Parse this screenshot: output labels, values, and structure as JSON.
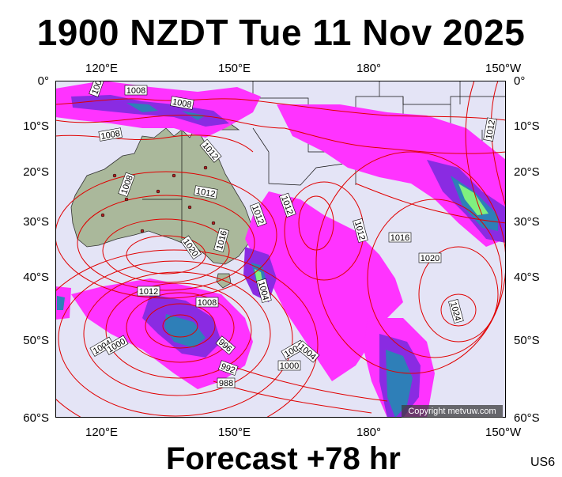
{
  "title": "1900 NZDT Tue 11 Nov 2025",
  "footer": "Forecast +78 hr",
  "model_code": "US6",
  "copyright": "Copyright metvuw.com",
  "axes": {
    "top_lon_labels": [
      "120°E",
      "150°E",
      "180°",
      "150°W"
    ],
    "bottom_lon_labels": [
      "120°E",
      "150°E",
      "180°",
      "150°W"
    ],
    "left_lat_labels": [
      "0°",
      "10°S",
      "20°S",
      "30°S",
      "40°S",
      "50°S",
      "60°S"
    ],
    "right_lat_labels": [
      "0°",
      "10°S",
      "20°S",
      "30°S",
      "40°S",
      "50°S",
      "60°S"
    ]
  },
  "isobar_labels": [
    "1008",
    "1008",
    "1008",
    "1008",
    "1008",
    "1012",
    "1012",
    "1012",
    "1012",
    "1012",
    "1016",
    "1016",
    "1020",
    "1020",
    "1024",
    "1012",
    "1012",
    "1004",
    "1004",
    "1000",
    "996",
    "992",
    "988",
    "1008",
    "1004",
    "1000",
    "1004"
  ],
  "colors": {
    "ocean": "#e4e4f6",
    "land": "#aab89b",
    "isobar": "#e00000",
    "rain_light": "#ff33ff",
    "rain_medium": "#8a2be2",
    "rain_heavy": "#2e7fb8",
    "rain_extreme": "#7ff07f"
  }
}
